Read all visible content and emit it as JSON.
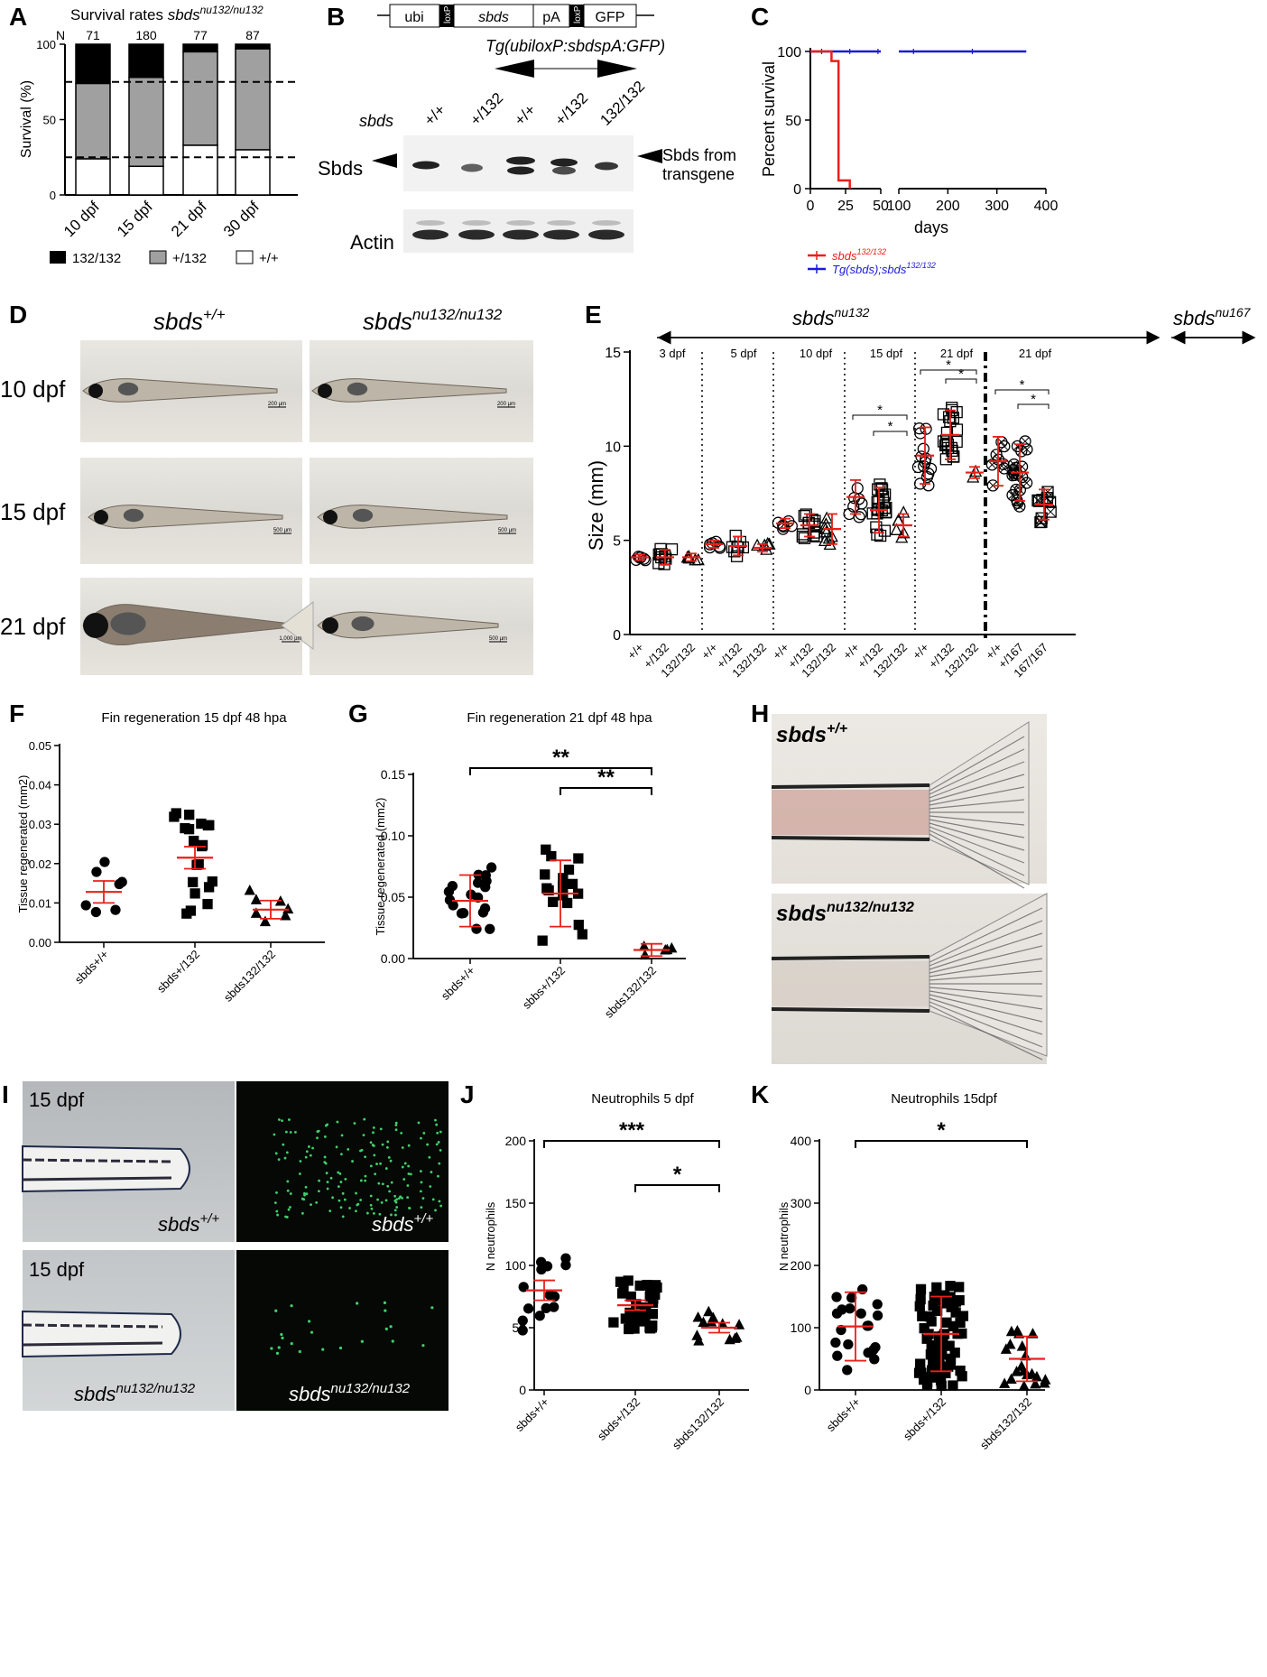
{
  "panels": {
    "A": "A",
    "B": "B",
    "C": "C",
    "D": "D",
    "E": "E",
    "F": "F",
    "G": "G",
    "H": "H",
    "I": "I",
    "J": "J",
    "K": "K"
  },
  "panelA": {
    "title": "Survival rates ",
    "title_gene": "sbds",
    "title_sup": "nu132/nu132",
    "n_label": "N",
    "n_values": [
      "71",
      "180",
      "77",
      "87"
    ],
    "ylabel": "Survival (%)",
    "yticks": [
      "0",
      "50",
      "100"
    ],
    "categories": [
      "10 dpf",
      "15 dpf",
      "21 dpf",
      "30 dpf"
    ],
    "legend": [
      "132/132",
      "+/132",
      "+/+"
    ]
  },
  "panelB": {
    "construct": [
      "ubi",
      "loxP",
      "sbds",
      "pA",
      "loxP",
      "GFP"
    ],
    "transgene_label": "Tg(ubiloxP:sbdspA:GFP)",
    "row_gene": "sbds",
    "lanes": [
      "+/+",
      "+/132",
      "+/+",
      "+/132",
      "132/132"
    ],
    "sbds_label": "Sbds",
    "transgene_note_1": "Sbds from",
    "transgene_note_2": "transgene",
    "actin_label": "Actin"
  },
  "panelC": {
    "ylabel": "Percent survival",
    "xlabel": "days",
    "yticks": [
      "0",
      "50",
      "100"
    ],
    "xticks_left": [
      "0",
      "25",
      "50"
    ],
    "xticks_right": [
      "100",
      "200",
      "300",
      "400"
    ],
    "legend": [
      {
        "gene": "sbds",
        "sup": "132/132",
        "color": "#e8201a"
      },
      {
        "prefix": "Tg(sbds);",
        "gene": "sbds",
        "sup": "132/132",
        "color": "#1a1ad8"
      }
    ]
  },
  "panelD": {
    "col1_gene": "sbds",
    "col1_sup": "+/+",
    "col2_gene": "sbds",
    "col2_sup": "nu132/nu132",
    "rows": [
      "10 dpf",
      "15 dpf",
      "21 dpf"
    ],
    "scalebars": [
      "200 µm",
      "200 µm",
      "500 µm",
      "500 µm",
      "1,000 µm",
      "500 µm"
    ]
  },
  "panelE": {
    "header_left_gene": "sbds",
    "header_left_sup": "nu132",
    "header_right_gene": "sbds",
    "header_right_sup": "nu167",
    "ylabel": "Size (mm)",
    "yticks": [
      "0",
      "5",
      "10",
      "15"
    ],
    "groups": [
      "3 dpf",
      "5 dpf",
      "10 dpf",
      "15 dpf",
      "21 dpf",
      "21 dpf"
    ],
    "xlabels": [
      "+/+",
      "+/132",
      "132/132",
      "+/+",
      "+/132",
      "132/132",
      "+/+",
      "+/132",
      "132/132",
      "+/+",
      "+/132",
      "132/132",
      "+/+",
      "+/132",
      "132/132",
      "+/+",
      "+/167",
      "167/167"
    ],
    "star": "*"
  },
  "panelF": {
    "title": "Fin regeneration 15 dpf 48 hpa",
    "ylabel": "Tissue regenerated (mm2)",
    "yticks": [
      "0.00",
      "0.01",
      "0.02",
      "0.03",
      "0.04",
      "0.05"
    ],
    "categories": [
      "sbds+/+",
      "sbds+/132",
      "sbds132/132"
    ]
  },
  "panelG": {
    "title": "Fin regeneration 21 dpf 48 hpa",
    "ylabel": "Tissue regenerated (mm2)",
    "yticks": [
      "0.00",
      "0.05",
      "0.10",
      "0.15"
    ],
    "categories": [
      "sbds+/+",
      "sbbs+/132",
      "sbds132/132"
    ],
    "sig": [
      "**",
      "**"
    ]
  },
  "panelH": {
    "top_gene": "sbds",
    "top_sup": "+/+",
    "bottom_gene": "sbds",
    "bottom_sup": "nu132/nu132"
  },
  "panelI": {
    "top_age": "15 dpf",
    "bottom_age": "15 dpf",
    "gene": "sbds",
    "sup_wt": "+/+",
    "sup_mut": "nu132/nu132"
  },
  "panelJ": {
    "title": "Neutrophils 5 dpf",
    "ylabel": "N neutrophils",
    "yticks": [
      "0",
      "50",
      "100",
      "150",
      "200"
    ],
    "categories": [
      "sbds+/+",
      "sbds+/132",
      "sbds132/132"
    ],
    "sig": [
      "***",
      "*"
    ]
  },
  "panelK": {
    "title": "Neutrophils 15dpf",
    "ylabel": "N neutrophils",
    "yticks": [
      "0",
      "100",
      "200",
      "300",
      "400"
    ],
    "categories": [
      "sbds+/+",
      "sbds+/132",
      "sbds132/132"
    ],
    "sig": [
      "*"
    ]
  },
  "chart_data": [
    {
      "panel": "A",
      "type": "bar",
      "stacked": true,
      "categories": [
        "10 dpf",
        "15 dpf",
        "21 dpf",
        "30 dpf"
      ],
      "series": [
        {
          "name": "+/+",
          "values": [
            24,
            19,
            33,
            30
          ]
        },
        {
          "name": "+/132",
          "values": [
            50,
            59,
            62,
            67
          ]
        },
        {
          "name": "132/132",
          "values": [
            26,
            22,
            5,
            3
          ]
        }
      ],
      "ylim": [
        0,
        100
      ],
      "reference_lines": [
        25,
        75
      ]
    },
    {
      "panel": "C",
      "type": "line",
      "ylim": [
        0,
        100
      ],
      "x_break": [
        50,
        100
      ],
      "series": [
        {
          "name": "sbds132/132",
          "x": [
            0,
            15,
            15,
            20,
            20,
            28,
            28
          ],
          "y": [
            100,
            100,
            93,
            93,
            6,
            6,
            0
          ]
        },
        {
          "name": "Tg(sbds);sbds132/132",
          "x": [
            0,
            360
          ],
          "y": [
            100,
            100
          ]
        }
      ]
    },
    {
      "panel": "E",
      "type": "scatter",
      "ylim": [
        0,
        15
      ],
      "means": [
        4.1,
        4.1,
        4.1,
        4.8,
        4.7,
        4.6,
        5.9,
        5.8,
        5.6,
        7.3,
        6.6,
        5.8,
        9.5,
        10.6,
        8.6,
        9.2,
        8.6,
        6.9
      ]
    },
    {
      "panel": "F",
      "type": "scatter",
      "ylim": [
        0,
        0.05
      ],
      "means": [
        0.0128,
        0.0215,
        0.0083
      ]
    },
    {
      "panel": "G",
      "type": "scatter",
      "ylim": [
        0,
        0.15
      ],
      "means": [
        0.047,
        0.053,
        0.007
      ]
    },
    {
      "panel": "J",
      "type": "scatter",
      "ylim": [
        0,
        200
      ],
      "means": [
        80,
        68,
        50
      ]
    },
    {
      "panel": "K",
      "type": "scatter",
      "ylim": [
        0,
        400
      ],
      "means": [
        102,
        90,
        50
      ]
    }
  ]
}
